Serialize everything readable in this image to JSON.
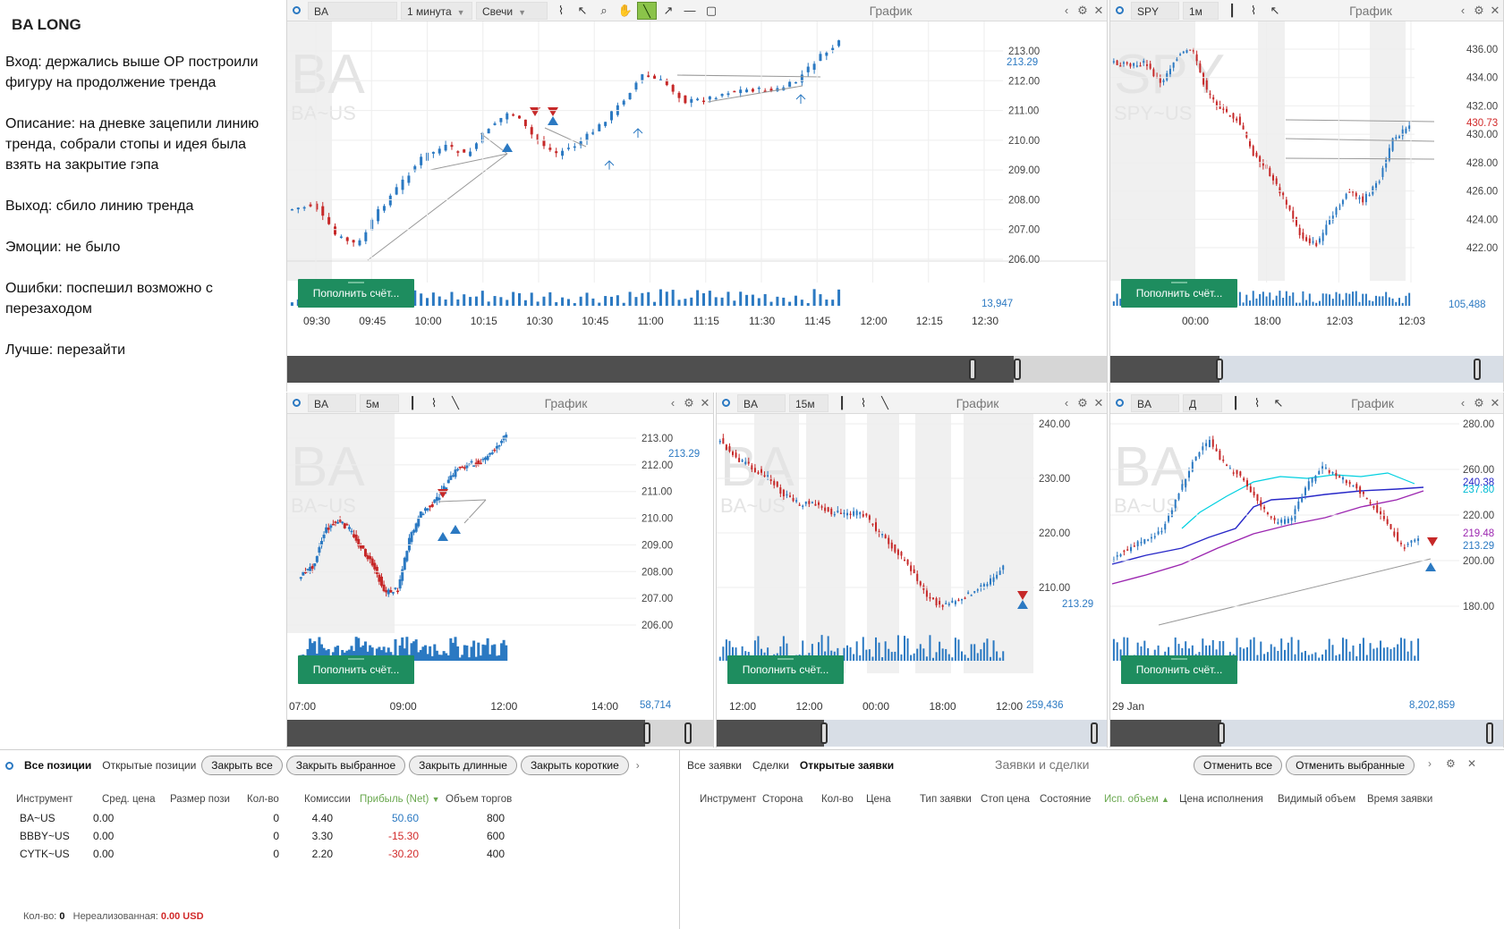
{
  "notes": {
    "title": "BA LONG",
    "lines": [
      "Вход: держались выше ОР построили фигуру на продолжение тренда",
      "Описание: на дневке зацепили линию тренда, собрали стопы и идея была взять на закрытие гэпа",
      "Выход: сбило линию тренда",
      "Эмоции: не было",
      "Ошибки: поспешил возможно с перезаходом",
      "Лучше: перезайти"
    ]
  },
  "panels": {
    "p1": {
      "symbol": "BA",
      "interval": "1 минута",
      "chart_type": "Свечи",
      "title": "График",
      "wm_symbol": "BA",
      "wm_sub": "BA~US",
      "y_ticks": [
        "213.00",
        "212.00",
        "211.00",
        "210.00",
        "209.00",
        "208.00",
        "207.00",
        "206.00"
      ],
      "last_price": "213.29",
      "x_ticks": [
        "09:30",
        "09:45",
        "10:00",
        "10:15",
        "10:30",
        "10:45",
        "11:00",
        "11:15",
        "11:30",
        "11:45",
        "12:00",
        "12:15",
        "12:30"
      ],
      "volume_label": "13,947",
      "topup_label": "Пополнить счёт..."
    },
    "p2": {
      "symbol": "SPY",
      "interval": "1м",
      "title": "График",
      "wm_symbol": "SPY",
      "wm_sub": "SPY~US",
      "y_ticks": [
        "436.00",
        "434.00",
        "432.00",
        "430.00",
        "428.00",
        "426.00",
        "424.00",
        "422.00"
      ],
      "last_price": "430.73",
      "x_ticks": [
        "00:00",
        "18:00",
        "12:03",
        "12:03"
      ],
      "volume_label": "105,488",
      "topup_label": "Пополнить счёт..."
    },
    "p3": {
      "symbol": "BA",
      "interval": "5м",
      "title": "График",
      "wm_symbol": "BA",
      "wm_sub": "BA~US",
      "y_ticks": [
        "213.00",
        "212.00",
        "211.00",
        "210.00",
        "209.00",
        "208.00",
        "207.00",
        "206.00"
      ],
      "last_price": "213.29",
      "x_ticks": [
        "07:00",
        "09:00",
        "12:00",
        "14:00"
      ],
      "volume_label": "58,714",
      "topup_label": "Пополнить счёт..."
    },
    "p4": {
      "symbol": "BA",
      "interval": "15м",
      "title": "График",
      "wm_symbol": "BA",
      "wm_sub": "BA~US",
      "y_ticks": [
        "240.00",
        "230.00",
        "220.00",
        "210.00"
      ],
      "last_price": "213.29",
      "x_ticks": [
        "12:00",
        "12:00",
        "00:00",
        "18:00",
        "12:00"
      ],
      "volume_label": "259,436",
      "topup_label": "Пополнить счёт..."
    },
    "p5": {
      "symbol": "BA",
      "interval": "Д",
      "title": "График",
      "wm_symbol": "BA",
      "wm_sub": "BA~US",
      "y_ticks": [
        "280.00",
        "260.00",
        "220.00",
        "200.00",
        "180.00"
      ],
      "ma_labels": [
        "240.38",
        "237.80",
        "219.48"
      ],
      "last_price": "213.29",
      "x_ticks": [
        "29 Jan"
      ],
      "volume_label": "8,202,859",
      "topup_label": "Пополнить счёт..."
    }
  },
  "positions": {
    "tabs": [
      "Все позиции",
      "Открытые позиции"
    ],
    "buttons": [
      "Закрыть все",
      "Закрыть выбранное",
      "Закрыть длинные",
      "Закрыть короткие"
    ],
    "columns": [
      "Инструмент",
      "Сред. цена",
      "Размер пози",
      "Кол-во",
      "Комиссии",
      "Прибыль (Net)",
      "Объем торгов"
    ],
    "rows": [
      {
        "instrument": "BA~US",
        "avg_price": "0.00",
        "qty": "0",
        "commission": "4.40",
        "profit": "50.60",
        "volume": "800"
      },
      {
        "instrument": "BBBY~US",
        "avg_price": "0.00",
        "qty": "0",
        "commission": "3.30",
        "profit": "-15.30",
        "volume": "600"
      },
      {
        "instrument": "CYTK~US",
        "avg_price": "0.00",
        "qty": "0",
        "commission": "2.20",
        "profit": "-30.20",
        "volume": "400"
      }
    ],
    "footer_qty_label": "Кол-во:",
    "footer_qty": "0",
    "footer_unreal_label": "Нереализованная:",
    "footer_unreal": "0.00 USD"
  },
  "orders": {
    "tabs": [
      "Все заявки",
      "Сделки",
      "Открытые заявки"
    ],
    "title": "Заявки и сделки",
    "buttons": [
      "Отменить все",
      "Отменить выбранные"
    ],
    "columns": [
      "Инструмент",
      "Сторона",
      "Кол-во",
      "Цена",
      "Тип заявки",
      "Стоп цена",
      "Состояние",
      "Исп. объем",
      "Цена исполнения",
      "Видимый объем",
      "Время заявки"
    ]
  }
}
